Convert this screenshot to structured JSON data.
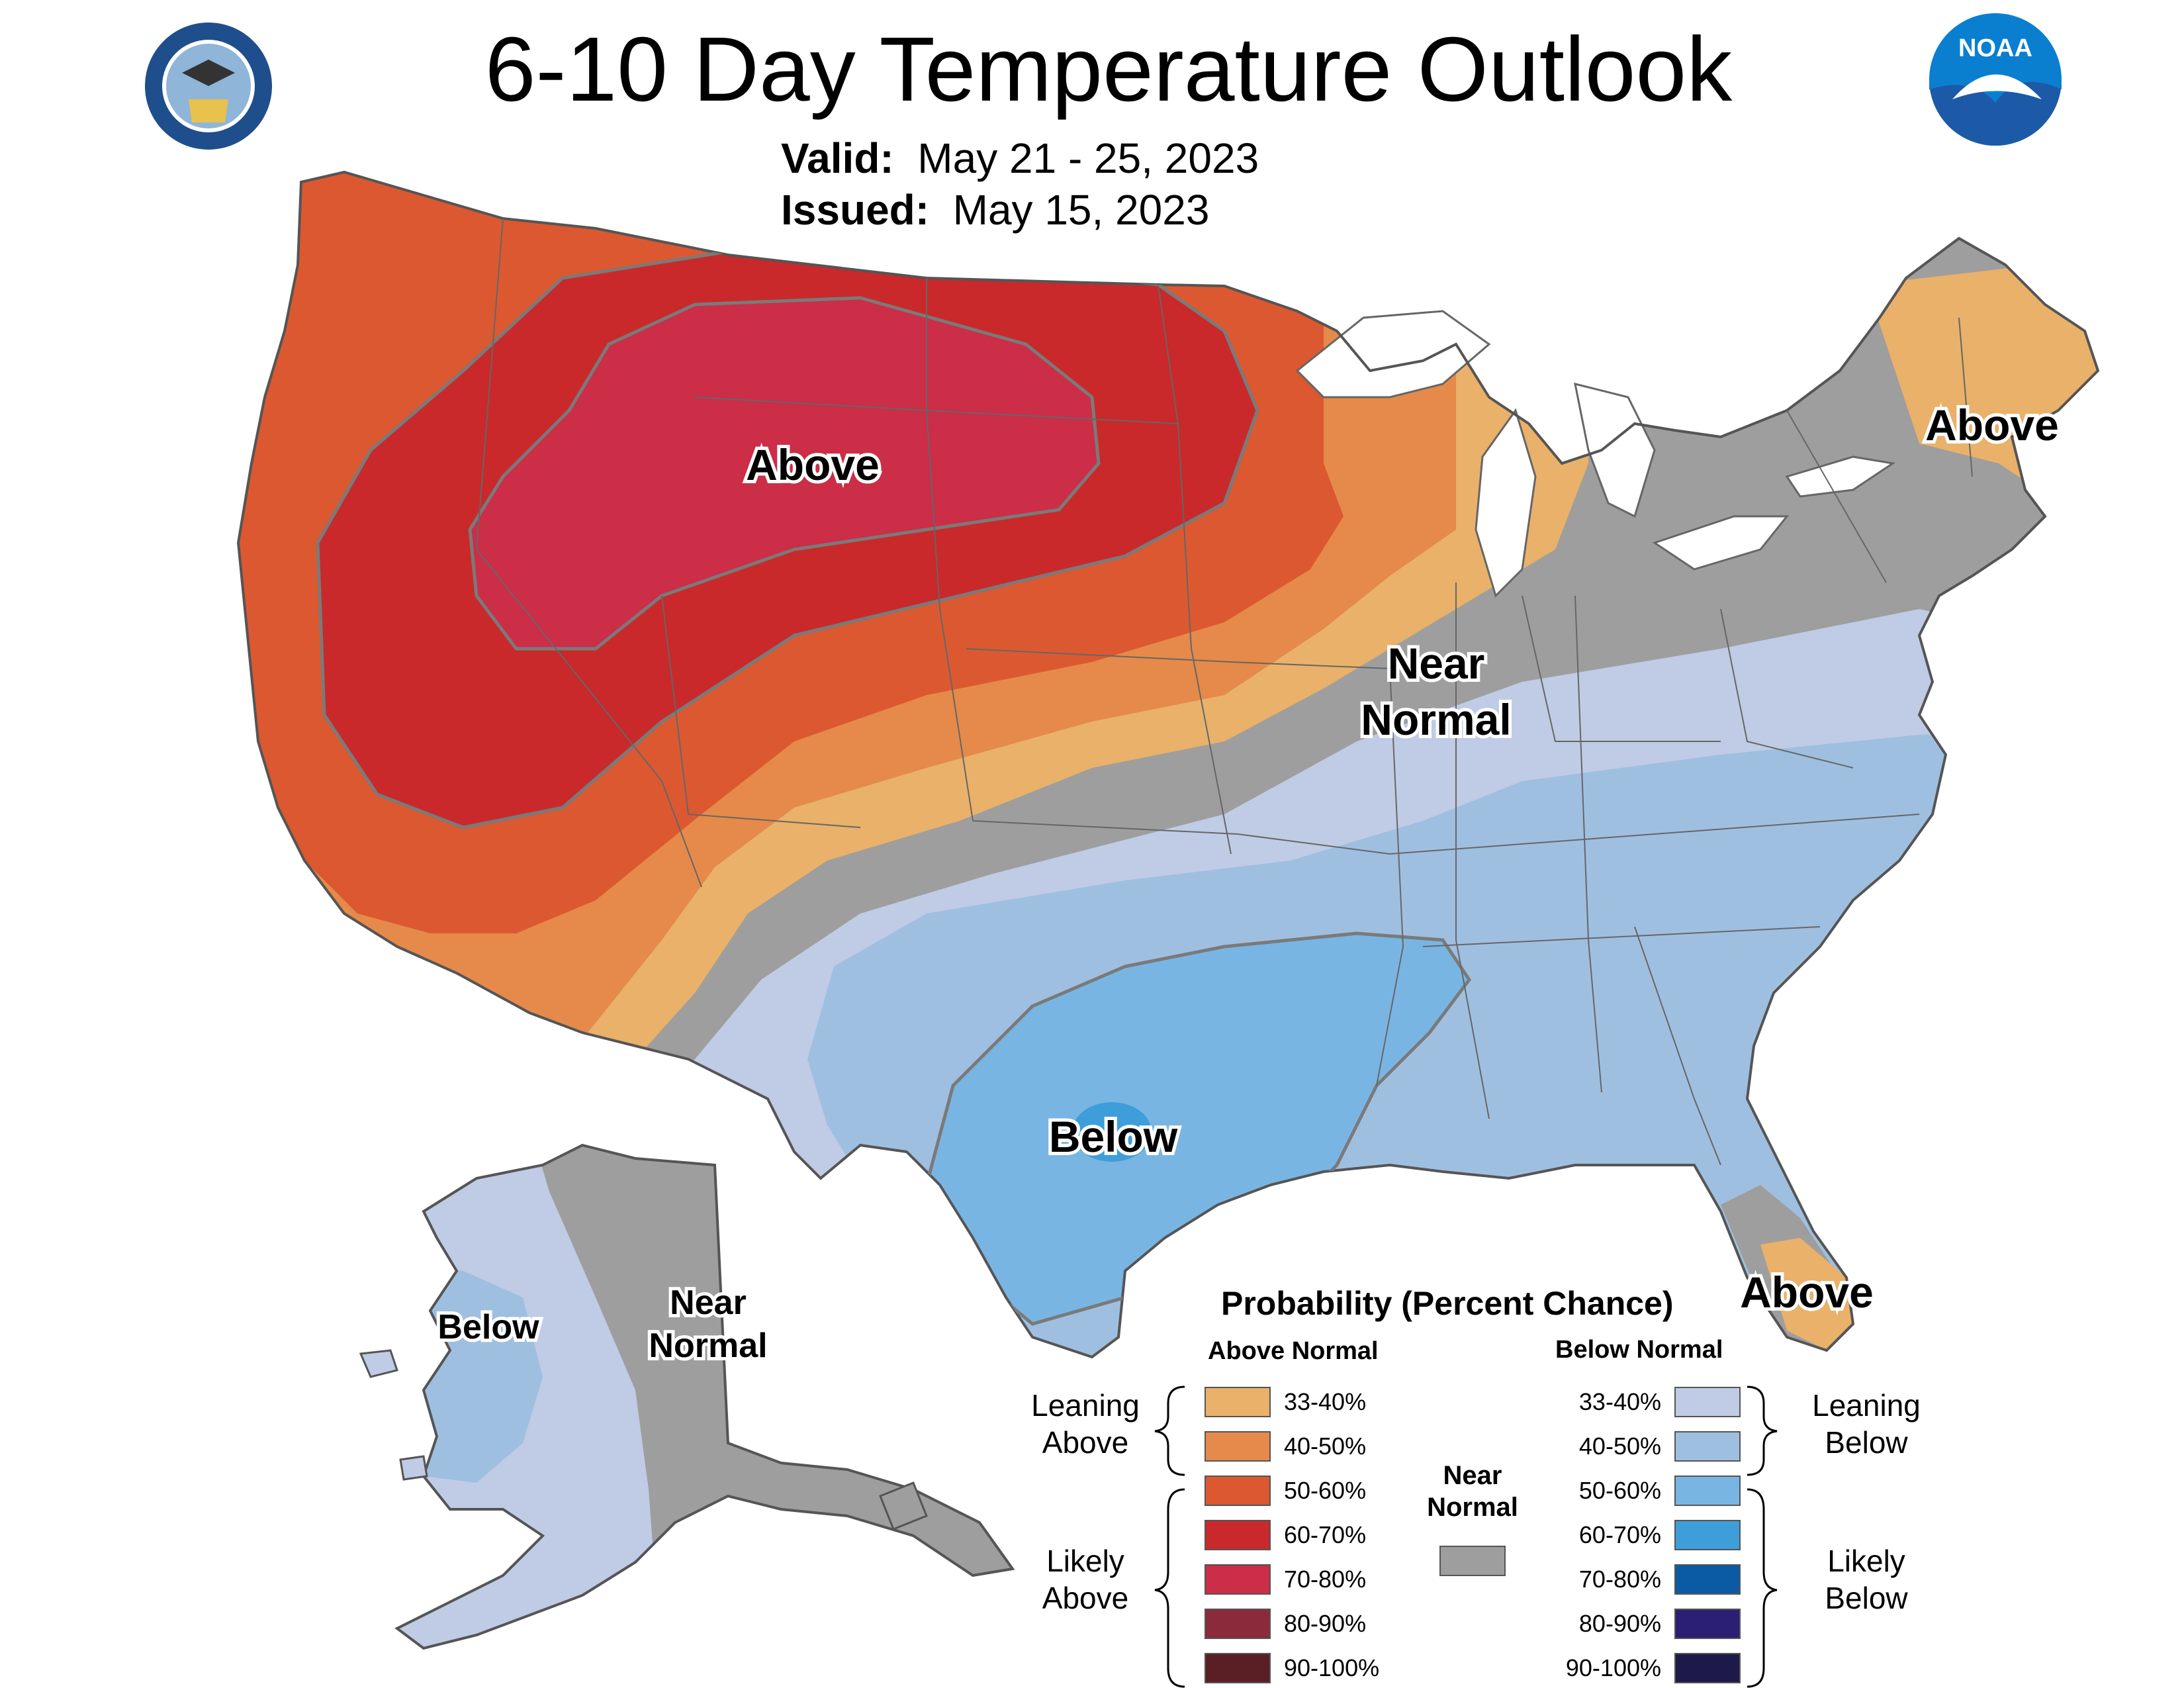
{
  "header": {
    "title": "6-10 Day Temperature Outlook",
    "valid_label": "Valid:",
    "valid_value": "May 21 - 25, 2023",
    "issued_label": "Issued:",
    "issued_value": "May 15, 2023"
  },
  "logos": {
    "doc_seal": "department-of-commerce-seal",
    "noaa": "NOAA"
  },
  "map_labels": {
    "west_above": "Above",
    "northeast_above": "Above",
    "near_normal_line1": "Near",
    "near_normal_line2": "Normal",
    "south_below": "Below",
    "florida_above": "Above",
    "alaska_below": "Below",
    "alaska_near_line1": "Near",
    "alaska_near_line2": "Normal"
  },
  "legend": {
    "title": "Probability (Percent Chance)",
    "above_header": "Above Normal",
    "below_header": "Below Normal",
    "near_normal_line1": "Near",
    "near_normal_line2": "Normal",
    "leaning_above_line1": "Leaning",
    "leaning_above_line2": "Above",
    "likely_above_line1": "Likely",
    "likely_above_line2": "Above",
    "leaning_below_line1": "Leaning",
    "leaning_below_line2": "Below",
    "likely_below_line1": "Likely",
    "likely_below_line2": "Below",
    "above_classes": [
      {
        "range": "33-40%",
        "color": "#e9b16a"
      },
      {
        "range": "40-50%",
        "color": "#e58a4a"
      },
      {
        "range": "50-60%",
        "color": "#dc5830"
      },
      {
        "range": "60-70%",
        "color": "#c9292a"
      },
      {
        "range": "70-80%",
        "color": "#cc2d47"
      },
      {
        "range": "80-90%",
        "color": "#8a2a3a"
      },
      {
        "range": "90-100%",
        "color": "#5a1f24"
      }
    ],
    "below_classes": [
      {
        "range": "33-40%",
        "color": "#c0cbe5"
      },
      {
        "range": "40-50%",
        "color": "#9fbfe0"
      },
      {
        "range": "50-60%",
        "color": "#79b5e3"
      },
      {
        "range": "60-70%",
        "color": "#3e9ed9"
      },
      {
        "range": "70-80%",
        "color": "#0a5ba3"
      },
      {
        "range": "80-90%",
        "color": "#2b1f73"
      },
      {
        "range": "90-100%",
        "color": "#1d1a4a"
      }
    ],
    "near_normal_color": "#9e9e9e"
  }
}
